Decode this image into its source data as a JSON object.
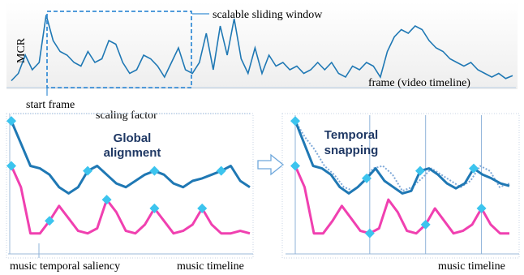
{
  "colors": {
    "signal": "#1f78b4",
    "music_curve": "#f040b0",
    "marker": "#3cc4ee",
    "window": "#3a8fd6",
    "grid": "#8fb3d9",
    "dotted_curve": "#7fa9d8",
    "panel_bg": "#f2f2f2",
    "label_dark": "#1f3864"
  },
  "top_panel": {
    "y_label": "MCR",
    "x_label": "frame (video timeline)",
    "window_label": "scalable sliding window",
    "start_frame_label": "start frame",
    "scaling_label": "scaling factor",
    "mcr_values": [
      0.05,
      0.15,
      0.4,
      0.2,
      0.3,
      0.95,
      0.6,
      0.45,
      0.4,
      0.3,
      0.25,
      0.45,
      0.3,
      0.35,
      0.6,
      0.55,
      0.3,
      0.15,
      0.2,
      0.4,
      0.35,
      0.25,
      0.1,
      0.3,
      0.5,
      0.2,
      0.15,
      0.3,
      0.7,
      0.2,
      0.8,
      0.4,
      0.9,
      0.35,
      0.15,
      0.5,
      0.15,
      0.4,
      0.25,
      0.3,
      0.2,
      0.25,
      0.15,
      0.2,
      0.3,
      0.2,
      0.3,
      0.15,
      0.1,
      0.25,
      0.2,
      0.3,
      0.25,
      0.1,
      0.45,
      0.65,
      0.75,
      0.7,
      0.8,
      0.75,
      0.6,
      0.5,
      0.45,
      0.35,
      0.3,
      0.25,
      0.3,
      0.2,
      0.15,
      0.1,
      0.15,
      0.08,
      0.12
    ]
  },
  "left_panel": {
    "title_line1": "Global",
    "title_line2": "alignment",
    "x_label_left": "music temporal saliency",
    "x_label_right": "music timeline",
    "video_curve": [
      0.98,
      0.8,
      0.62,
      0.6,
      0.55,
      0.45,
      0.4,
      0.45,
      0.58,
      0.62,
      0.55,
      0.48,
      0.45,
      0.5,
      0.55,
      0.58,
      0.55,
      0.48,
      0.45,
      0.5,
      0.52,
      0.55,
      0.58,
      0.62,
      0.5,
      0.45
    ],
    "video_marker_indices": [
      0,
      8,
      15,
      22
    ],
    "music_curve": [
      0.62,
      0.45,
      0.08,
      0.08,
      0.18,
      0.3,
      0.2,
      0.1,
      0.08,
      0.12,
      0.35,
      0.25,
      0.1,
      0.08,
      0.15,
      0.28,
      0.18,
      0.08,
      0.1,
      0.15,
      0.28,
      0.15,
      0.08,
      0.08,
      0.1,
      0.08
    ],
    "music_marker_indices": [
      0,
      4,
      10,
      15,
      20
    ]
  },
  "right_panel": {
    "title_line1": "Temporal",
    "title_line2": "snapping",
    "x_label": "music timeline",
    "video_curve": [
      0.98,
      0.8,
      0.62,
      0.6,
      0.55,
      0.45,
      0.4,
      0.45,
      0.52,
      0.6,
      0.5,
      0.45,
      0.4,
      0.42,
      0.58,
      0.6,
      0.55,
      0.48,
      0.44,
      0.48,
      0.6,
      0.55,
      0.52,
      0.48,
      0.46
    ],
    "dotted_curve": [
      0.98,
      0.85,
      0.75,
      0.62,
      0.55,
      0.45,
      0.42,
      0.5,
      0.6,
      0.62,
      0.55,
      0.42,
      0.45,
      0.52,
      0.6,
      0.55,
      0.5,
      0.45,
      0.5,
      0.62,
      0.58,
      0.45,
      0.48
    ],
    "video_marker_indices": [
      0,
      8,
      14,
      20
    ],
    "music_curve": [
      0.62,
      0.45,
      0.08,
      0.08,
      0.18,
      0.3,
      0.2,
      0.1,
      0.08,
      0.12,
      0.35,
      0.25,
      0.1,
      0.08,
      0.15,
      0.28,
      0.18,
      0.08,
      0.1,
      0.15,
      0.28,
      0.15,
      0.08,
      0.08
    ],
    "music_marker_indices": [
      0,
      8,
      14,
      20
    ]
  }
}
